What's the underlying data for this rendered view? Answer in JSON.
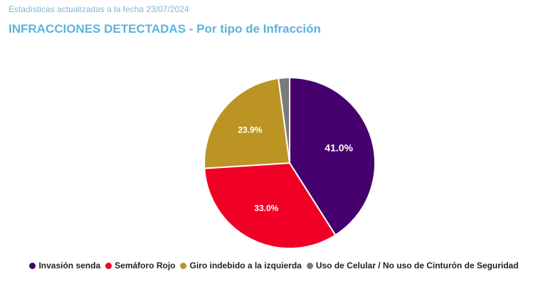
{
  "header": {
    "subtitle": "Estadísticas actualizadas a la fecha 23/07/2024",
    "title": "INFRACCIONES DETECTADAS - Por tipo de Infracción"
  },
  "chart_data": {
    "type": "pie",
    "categories": [
      "Invasión senda",
      "Semáforo Rojo",
      "Giro indebido a la izquierda",
      "Uso de Celular / No uso de Cinturón de Seguridad"
    ],
    "values": [
      41.0,
      33.0,
      23.9,
      2.1
    ],
    "data_labels": [
      "41.0%",
      "33.0%",
      "23.9%",
      ""
    ],
    "colors": [
      "#45006d",
      "#f00025",
      "#bb9424",
      "#7a7a7a"
    ],
    "legend_position": "bottom"
  }
}
